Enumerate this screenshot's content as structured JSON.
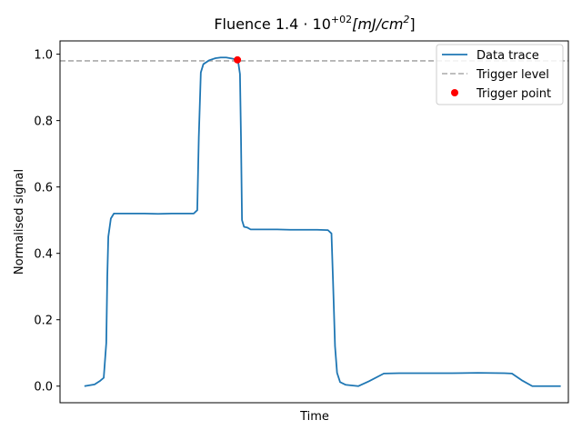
{
  "chart_data": {
    "type": "line",
    "title": {
      "main": "Fluence 1.4 · 10",
      "exp": "+02",
      "unit": "[mJ/cm",
      "unit_exp": "2",
      "close": "]"
    },
    "xlabel": "Time",
    "ylabel": "Normalised signal",
    "xlim": [
      0,
      100
    ],
    "ylim": [
      -0.05,
      1.04
    ],
    "yticks": [
      0.0,
      0.2,
      0.4,
      0.6,
      0.8,
      1.0
    ],
    "ytick_labels": [
      "0.0",
      "0.2",
      "0.4",
      "0.6",
      "0.8",
      "1.0"
    ],
    "legend_position": "top-right",
    "trigger_level": 0.98,
    "trigger_point": {
      "x": 34.9,
      "y": 0.983
    },
    "colors": {
      "trace": "#1f77b4",
      "trigger_line": "#aaaaaa",
      "trigger_point": "#ff0000"
    },
    "legend": [
      "Data trace",
      "Trigger level",
      "Trigger point"
    ],
    "series": [
      {
        "name": "Data trace",
        "x": [
          4.8,
          6.8,
          7.8,
          8.6,
          9.1,
          9.3,
          9.5,
          10.0,
          10.6,
          11.6,
          14.0,
          16.6,
          19.3,
          22.0,
          24.6,
          26.3,
          27.0,
          27.3,
          27.7,
          28.2,
          29.4,
          30.6,
          31.6,
          32.7,
          33.8,
          34.7,
          35.0,
          35.4,
          35.6,
          35.8,
          36.2,
          36.8,
          37.5,
          40.1,
          42.7,
          45.3,
          48.0,
          50.6,
          52.7,
          53.4,
          53.7,
          54.1,
          54.5,
          55.1,
          56.2,
          57.4,
          58.7,
          60.8,
          63.7,
          66.7,
          71.9,
          77.1,
          82.2,
          87.4,
          88.9,
          90.8,
          92.9,
          95.5,
          98.5
        ],
        "y": [
          0.0,
          0.005,
          0.015,
          0.025,
          0.13,
          0.33,
          0.45,
          0.505,
          0.52,
          0.52,
          0.52,
          0.52,
          0.519,
          0.52,
          0.52,
          0.52,
          0.53,
          0.75,
          0.945,
          0.97,
          0.982,
          0.988,
          0.99,
          0.99,
          0.987,
          0.984,
          0.982,
          0.94,
          0.75,
          0.5,
          0.48,
          0.478,
          0.472,
          0.472,
          0.472,
          0.471,
          0.471,
          0.471,
          0.47,
          0.46,
          0.32,
          0.12,
          0.04,
          0.012,
          0.004,
          0.002,
          0.0,
          0.015,
          0.038,
          0.039,
          0.039,
          0.039,
          0.04,
          0.039,
          0.038,
          0.018,
          0.0,
          0.0,
          0.0
        ]
      }
    ]
  }
}
